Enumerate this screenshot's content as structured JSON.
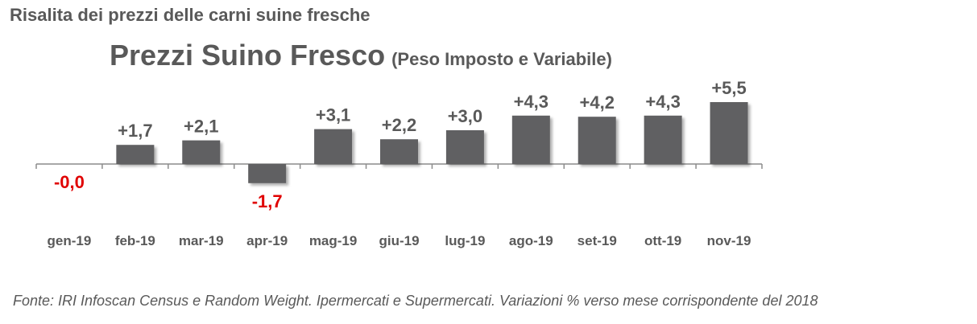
{
  "headline": "Risalita dei prezzi delle carni suine fresche",
  "source": "Fonte: IRI Infoscan Census e Random Weight. Ipermercati e Supermercati. Variazioni % verso mese corrispondente del 2018",
  "colors": {
    "bar": "#606062",
    "positive_label": "#595959",
    "negative_label": "#e00000",
    "axis": "#8c8c8c",
    "text": "#595959"
  },
  "chart_data": {
    "type": "bar",
    "title": "Prezzi Suino Fresco",
    "subtitle": "(Peso Imposto e Variabile)",
    "categories": [
      "gen-19",
      "feb-19",
      "mar-19",
      "apr-19",
      "mag-19",
      "giu-19",
      "lug-19",
      "ago-19",
      "set-19",
      "ott-19",
      "nov-19"
    ],
    "values": [
      0.0,
      1.7,
      2.1,
      -1.7,
      3.1,
      2.2,
      3.0,
      4.3,
      4.2,
      4.3,
      5.5
    ],
    "data_labels": [
      "-0,0",
      "+1,7",
      "+2,1",
      "-1,7",
      "+3,1",
      "+2,2",
      "+3,0",
      "+4,3",
      "+4,2",
      "+4,3",
      "+5,5"
    ],
    "xlabel": "",
    "ylabel": "",
    "ylim": [
      -2.5,
      6
    ],
    "grid": false,
    "legend": "none"
  }
}
